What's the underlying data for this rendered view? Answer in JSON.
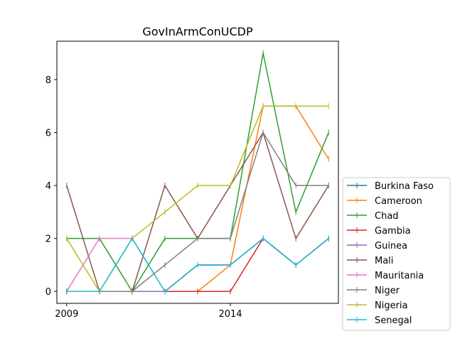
{
  "chart_data": {
    "type": "line",
    "title": "GovInArmConUCDP",
    "xlabel": "",
    "ylabel": "",
    "x": [
      2009,
      2010,
      2011,
      2012,
      2013,
      2014,
      2015,
      2016,
      2017
    ],
    "xlim": [
      2008.7,
      2017.3
    ],
    "ylim": [
      -0.45,
      9.45
    ],
    "xticks": [
      2009,
      2014
    ],
    "xtick_labels": [
      "2009",
      "2014"
    ],
    "yticks": [
      0,
      2,
      4,
      6,
      8
    ],
    "ytick_labels": [
      "0",
      "2",
      "4",
      "6",
      "8"
    ],
    "grid": false,
    "legend_position": "outside-right-bottom",
    "series": [
      {
        "name": "Burkina Faso",
        "color": "#1f77b4",
        "values": [
          0,
          0,
          0,
          0,
          1,
          1,
          2,
          1,
          2
        ]
      },
      {
        "name": "Cameroon",
        "color": "#ff7f0e",
        "values": [
          0,
          0,
          0,
          0,
          0,
          1,
          7,
          7,
          5
        ]
      },
      {
        "name": "Chad",
        "color": "#2ca02c",
        "values": [
          2,
          2,
          0,
          2,
          2,
          2,
          9,
          3,
          6
        ]
      },
      {
        "name": "Gambia",
        "color": "#d62728",
        "values": [
          0,
          0,
          0,
          0,
          0,
          0,
          2,
          1,
          2
        ]
      },
      {
        "name": "Guinea",
        "color": "#9467bd",
        "values": [
          0,
          0,
          0,
          0,
          1,
          1,
          2,
          1,
          2
        ]
      },
      {
        "name": "Mali",
        "color": "#8c564b",
        "values": [
          4,
          0,
          0,
          4,
          2,
          4,
          6,
          2,
          4
        ]
      },
      {
        "name": "Mauritania",
        "color": "#e377c2",
        "values": [
          0,
          2,
          2,
          0,
          1,
          1,
          2,
          1,
          2
        ]
      },
      {
        "name": "Niger",
        "color": "#7f7f7f",
        "values": [
          0,
          0,
          0,
          1,
          2,
          2,
          6,
          4,
          4
        ]
      },
      {
        "name": "Nigeria",
        "color": "#bcbd22",
        "values": [
          2,
          0,
          2,
          3,
          4,
          4,
          7,
          7,
          7
        ]
      },
      {
        "name": "Senegal",
        "color": "#17becf",
        "values": [
          0,
          0,
          2,
          0,
          1,
          1,
          2,
          1,
          2
        ]
      }
    ]
  }
}
